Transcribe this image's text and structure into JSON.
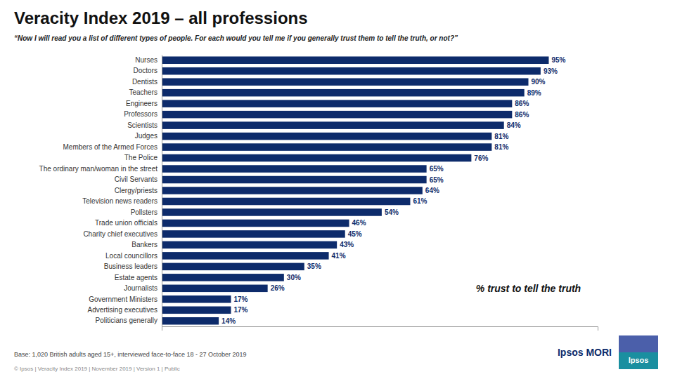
{
  "chart_data": {
    "type": "bar",
    "orientation": "horizontal",
    "title": "Veracity Index 2019 – all professions",
    "subtitle": "“Now I will read you a list of different types of people. For each would you tell me if you generally trust them to tell the truth, or not?”",
    "categories": [
      "Politicians generally",
      "Advertising executives",
      "Government Ministers",
      "Journalists",
      "Estate agents",
      "Business leaders",
      "Local councillors",
      "Bankers",
      "Charity chief executives",
      "Trade union officials",
      "Pollsters",
      "Television news readers",
      "Clergy/priests",
      "Civil Servants",
      "The ordinary man/woman in the street",
      "The Police",
      "Members of the Armed Forces",
      "Judges",
      "Scientists",
      "Professors",
      "Engineers",
      "Teachers",
      "Dentists",
      "Doctors",
      "Nurses"
    ],
    "values": [
      14,
      17,
      17,
      26,
      30,
      35,
      41,
      43,
      45,
      46,
      54,
      61,
      64,
      65,
      65,
      76,
      81,
      81,
      84,
      86,
      86,
      89,
      90,
      93,
      95
    ],
    "value_labels": [
      "14%",
      "17%",
      "17%",
      "26%",
      "30%",
      "35%",
      "41%",
      "43%",
      "45%",
      "46%",
      "54%",
      "61%",
      "64%",
      "65%",
      "65%",
      "76%",
      "81%",
      "81%",
      "84%",
      "86%",
      "86%",
      "89%",
      "90%",
      "93%",
      "95%"
    ],
    "color": "#0d2b6b",
    "xlim": [
      0,
      107
    ],
    "data_labels": true,
    "tick_labels": "y",
    "grid": false,
    "annotations": [
      "% trust to tell the truth",
      "Base: 1,020 British adults aged 15+, interviewed face-to-face  18 - 27 October 2019",
      "© Ipsos | Veracity Index 2019 | November 2019 | Version 1 | Public",
      "Ipsos MORI",
      "Ipsos"
    ]
  }
}
